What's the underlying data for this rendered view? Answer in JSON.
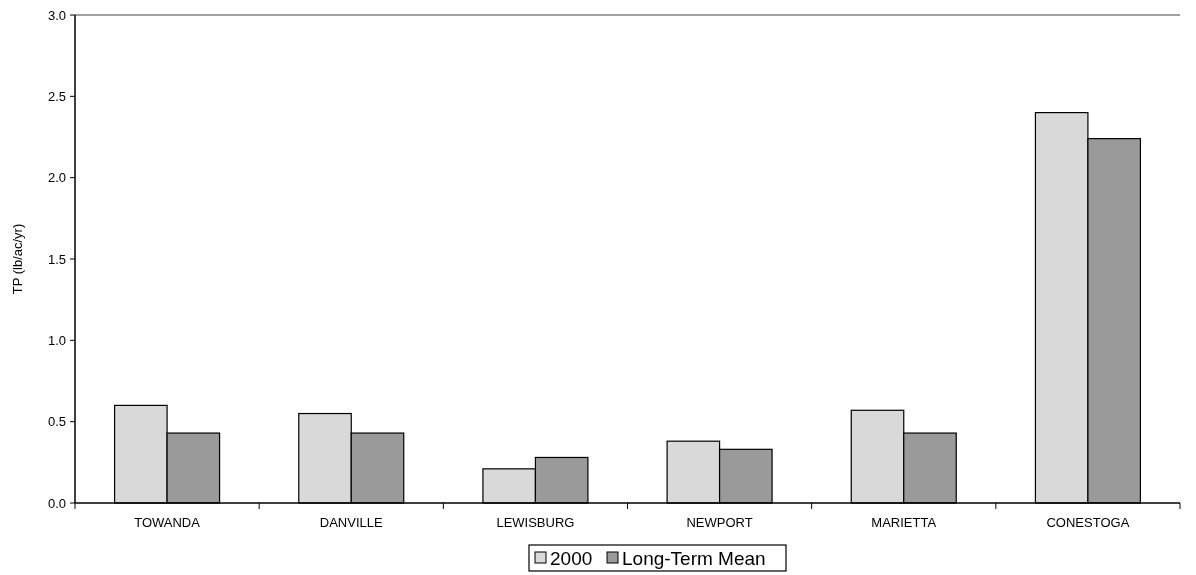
{
  "chart_data": {
    "type": "bar",
    "ylabel": "TP (lb/ac/yr)",
    "categories": [
      "TOWANDA",
      "DANVILLE",
      "LEWISBURG",
      "NEWPORT",
      "MARIETTA",
      "CONESTOGA"
    ],
    "series": [
      {
        "name": "2000",
        "color": "#d9d9d9",
        "values": [
          0.6,
          0.55,
          0.21,
          0.38,
          0.57,
          2.4
        ]
      },
      {
        "name": "Long-Term Mean",
        "color": "#9a9a9a",
        "values": [
          0.43,
          0.43,
          0.28,
          0.33,
          0.43,
          2.24
        ]
      }
    ],
    "ylim": [
      0,
      3
    ],
    "yticks": [
      {
        "value": 0,
        "label": "0.0"
      },
      {
        "value": 0.5,
        "label": "0.5"
      },
      {
        "value": 1,
        "label": "1.0"
      },
      {
        "value": 1.5,
        "label": "1.5"
      },
      {
        "value": 2,
        "label": "2.0"
      },
      {
        "value": 2.5,
        "label": "2.5"
      },
      {
        "value": 3,
        "label": "3.0"
      }
    ],
    "grid": false,
    "legend": "bottom"
  }
}
